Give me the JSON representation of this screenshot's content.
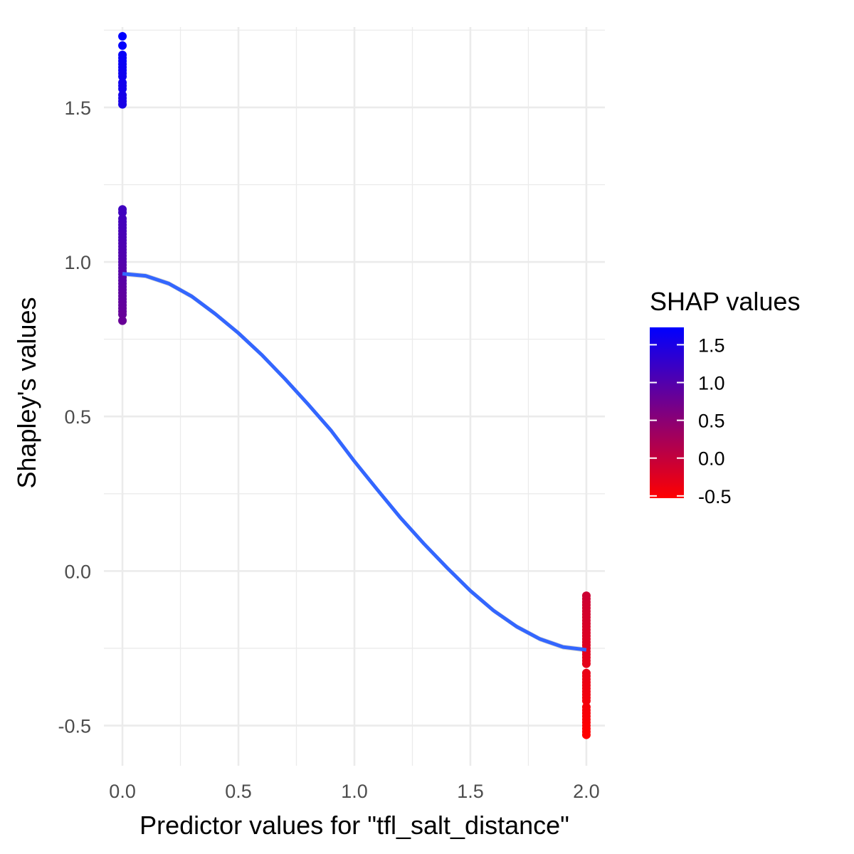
{
  "chart_data": {
    "type": "scatter",
    "xlabel": "Predictor values for \"tfl_salt_distance\"",
    "ylabel": "Shapley's values",
    "xlim": [
      -0.08,
      2.08
    ],
    "ylim": [
      -0.63,
      1.76
    ],
    "x_ticks": [
      0.0,
      0.5,
      1.0,
      1.5,
      2.0
    ],
    "x_tick_labels": [
      "0.0",
      "0.5",
      "1.0",
      "1.5",
      "2.0"
    ],
    "y_ticks": [
      -0.5,
      0.0,
      0.5,
      1.0,
      1.5
    ],
    "y_tick_labels": [
      "-0.5",
      "0.0",
      "0.5",
      "1.0",
      "1.5"
    ],
    "grid": true,
    "color_scale": {
      "title": "SHAP values",
      "low_color": "#ff0000",
      "high_color": "#0000ff",
      "range": [
        -0.53,
        1.73
      ],
      "ticks": [
        -0.5,
        0.0,
        0.5,
        1.0,
        1.5
      ],
      "tick_labels": [
        "-0.5",
        "0.0",
        "0.5",
        "1.0",
        "1.5"
      ],
      "placement": "right"
    },
    "smooth_line": {
      "color": "#3366ff",
      "points": [
        [
          0.0,
          0.962
        ],
        [
          0.1,
          0.955
        ],
        [
          0.2,
          0.93
        ],
        [
          0.3,
          0.888
        ],
        [
          0.4,
          0.832
        ],
        [
          0.5,
          0.77
        ],
        [
          0.6,
          0.7
        ],
        [
          0.7,
          0.622
        ],
        [
          0.8,
          0.54
        ],
        [
          0.9,
          0.454
        ],
        [
          1.0,
          0.355
        ],
        [
          1.1,
          0.262
        ],
        [
          1.2,
          0.171
        ],
        [
          1.3,
          0.088
        ],
        [
          1.4,
          0.01
        ],
        [
          1.5,
          -0.064
        ],
        [
          1.6,
          -0.128
        ],
        [
          1.7,
          -0.18
        ],
        [
          1.8,
          -0.22
        ],
        [
          1.9,
          -0.246
        ],
        [
          2.0,
          -0.255
        ]
      ]
    },
    "series": [
      {
        "x": 0.0,
        "values": [
          1.73,
          1.7,
          1.67,
          1.66,
          1.65,
          1.64,
          1.63,
          1.62,
          1.61,
          1.6,
          1.58,
          1.57,
          1.56,
          1.54,
          1.53,
          1.52,
          1.51,
          1.17,
          1.16,
          1.14,
          1.13,
          1.12,
          1.11,
          1.1,
          1.09,
          1.08,
          1.07,
          1.06,
          1.05,
          1.04,
          1.03,
          1.02,
          1.01,
          1.0,
          0.99,
          0.98,
          0.97,
          0.96,
          0.95,
          0.94,
          0.93,
          0.92,
          0.91,
          0.9,
          0.89,
          0.88,
          0.87,
          0.86,
          0.85,
          0.84,
          0.83,
          0.81
        ]
      },
      {
        "x": 2.0,
        "values": [
          -0.08,
          -0.09,
          -0.1,
          -0.11,
          -0.12,
          -0.13,
          -0.14,
          -0.15,
          -0.16,
          -0.17,
          -0.18,
          -0.19,
          -0.2,
          -0.21,
          -0.22,
          -0.23,
          -0.24,
          -0.25,
          -0.26,
          -0.27,
          -0.28,
          -0.29,
          -0.3,
          -0.33,
          -0.34,
          -0.35,
          -0.36,
          -0.37,
          -0.38,
          -0.39,
          -0.4,
          -0.41,
          -0.42,
          -0.44,
          -0.45,
          -0.46,
          -0.47,
          -0.48,
          -0.49,
          -0.5,
          -0.51,
          -0.52,
          -0.53
        ]
      }
    ]
  }
}
